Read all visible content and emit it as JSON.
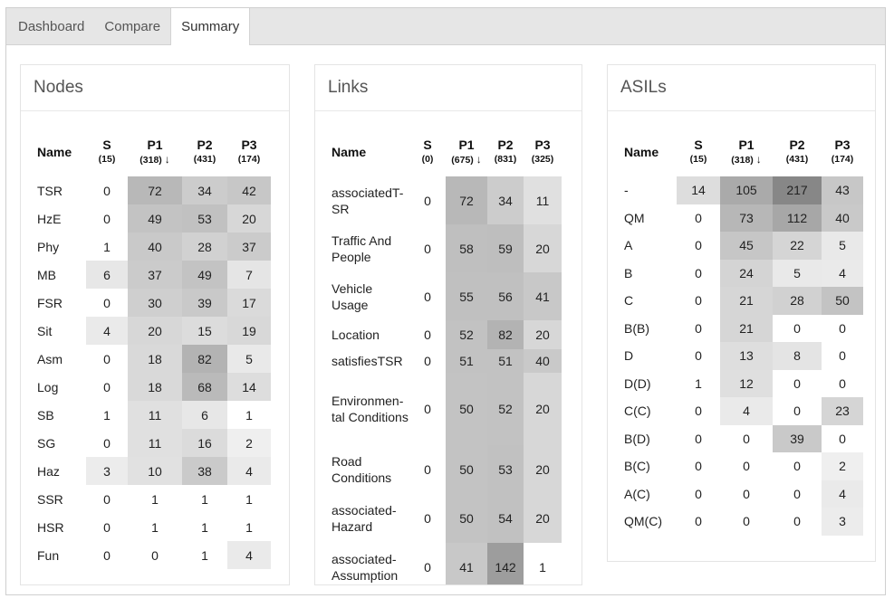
{
  "tabs": [
    {
      "label": "Dashboard",
      "active": false
    },
    {
      "label": "Compare",
      "active": false
    },
    {
      "label": "Summary",
      "active": true
    }
  ],
  "arrow_glyph": "↓",
  "heat_max": 217,
  "panels": [
    {
      "title": "Nodes",
      "name_header": "Name",
      "sort_column": 1,
      "columns": [
        {
          "label": "S",
          "count": "(15)"
        },
        {
          "label": "P1",
          "count": "(318)"
        },
        {
          "label": "P2",
          "count": "(431)"
        },
        {
          "label": "P3",
          "count": "(174)"
        }
      ],
      "rows": [
        {
          "name": "TSR",
          "values": [
            0,
            72,
            34,
            42
          ]
        },
        {
          "name": "HzE",
          "values": [
            0,
            49,
            53,
            20
          ]
        },
        {
          "name": "Phy",
          "values": [
            1,
            40,
            28,
            37
          ]
        },
        {
          "name": "MB",
          "values": [
            6,
            37,
            49,
            7
          ]
        },
        {
          "name": "FSR",
          "values": [
            0,
            30,
            39,
            17
          ]
        },
        {
          "name": "Sit",
          "values": [
            4,
            20,
            15,
            19
          ]
        },
        {
          "name": "Asm",
          "values": [
            0,
            18,
            82,
            5
          ]
        },
        {
          "name": "Log",
          "values": [
            0,
            18,
            68,
            14
          ]
        },
        {
          "name": "SB",
          "values": [
            1,
            11,
            6,
            1
          ]
        },
        {
          "name": "SG",
          "values": [
            0,
            11,
            16,
            2
          ]
        },
        {
          "name": "Haz",
          "values": [
            3,
            10,
            38,
            4
          ]
        },
        {
          "name": "SSR",
          "values": [
            0,
            1,
            1,
            1
          ]
        },
        {
          "name": "HSR",
          "values": [
            0,
            1,
            1,
            1
          ]
        },
        {
          "name": "Fun",
          "values": [
            0,
            0,
            1,
            4
          ]
        }
      ]
    },
    {
      "title": "Links",
      "name_header": "Name",
      "sort_column": 1,
      "columns": [
        {
          "label": "S",
          "count": "(0)"
        },
        {
          "label": "P1",
          "count": "(675)"
        },
        {
          "label": "P2",
          "count": "(831)"
        },
        {
          "label": "P3",
          "count": "(325)"
        }
      ],
      "rows": [
        {
          "name": "associatedT-SR",
          "values": [
            0,
            72,
            34,
            11
          ]
        },
        {
          "name": "Traffic And People",
          "values": [
            0,
            58,
            59,
            20
          ]
        },
        {
          "name": "Vehicle Usage",
          "values": [
            0,
            55,
            56,
            41
          ]
        },
        {
          "name": "Location",
          "values": [
            0,
            52,
            82,
            20
          ]
        },
        {
          "name": "satisfiesTSR",
          "values": [
            0,
            51,
            51,
            40
          ]
        },
        {
          "name": "Environmen-tal Conditions",
          "values": [
            0,
            50,
            52,
            20
          ]
        },
        {
          "name": "Road Conditions",
          "values": [
            0,
            50,
            53,
            20
          ]
        },
        {
          "name": "associated-Hazard",
          "values": [
            0,
            50,
            54,
            20
          ]
        },
        {
          "name": "associated-Assumption",
          "values": [
            0,
            41,
            142,
            1
          ]
        }
      ]
    },
    {
      "title": "ASILs",
      "name_header": "Name",
      "sort_column": 1,
      "columns": [
        {
          "label": "S",
          "count": "(15)"
        },
        {
          "label": "P1",
          "count": "(318)"
        },
        {
          "label": "P2",
          "count": "(431)"
        },
        {
          "label": "P3",
          "count": "(174)"
        }
      ],
      "rows": [
        {
          "name": "-",
          "values": [
            14,
            105,
            217,
            43
          ]
        },
        {
          "name": "QM",
          "values": [
            0,
            73,
            112,
            40
          ]
        },
        {
          "name": "A",
          "values": [
            0,
            45,
            22,
            5
          ]
        },
        {
          "name": "B",
          "values": [
            0,
            24,
            5,
            4
          ]
        },
        {
          "name": "C",
          "values": [
            0,
            21,
            28,
            50
          ]
        },
        {
          "name": "B(B)",
          "values": [
            0,
            21,
            0,
            0
          ]
        },
        {
          "name": "D",
          "values": [
            0,
            13,
            8,
            0
          ]
        },
        {
          "name": "D(D)",
          "values": [
            1,
            12,
            0,
            0
          ]
        },
        {
          "name": "C(C)",
          "values": [
            0,
            4,
            0,
            23
          ]
        },
        {
          "name": "B(D)",
          "values": [
            0,
            0,
            39,
            0
          ]
        },
        {
          "name": "B(C)",
          "values": [
            0,
            0,
            0,
            2
          ]
        },
        {
          "name": "A(C)",
          "values": [
            0,
            0,
            0,
            4
          ]
        },
        {
          "name": "QM(C)",
          "values": [
            0,
            0,
            0,
            3
          ]
        }
      ]
    }
  ]
}
